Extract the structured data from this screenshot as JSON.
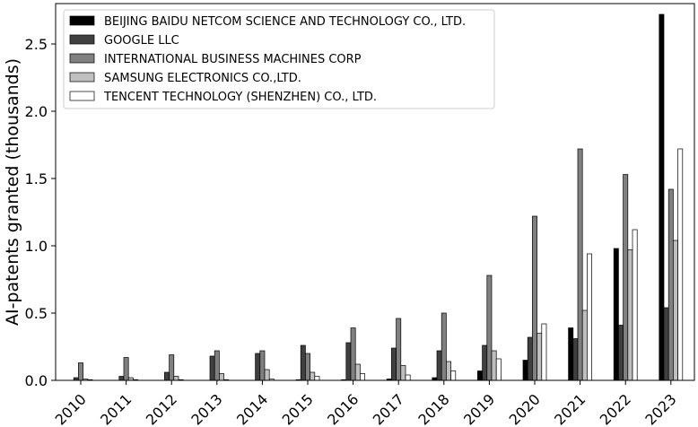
{
  "chart_data": {
    "type": "bar",
    "title": "",
    "xlabel": "",
    "ylabel": "AI-patents granted (thousands)",
    "ylim": [
      0,
      2.8
    ],
    "yticks": [
      "0.0",
      "0.5",
      "1.0",
      "1.5",
      "2.0",
      "2.5"
    ],
    "grid": false,
    "legend_position": "top-left",
    "categories": [
      "2010",
      "2011",
      "2012",
      "2013",
      "2014",
      "2015",
      "2016",
      "2017",
      "2018",
      "2019",
      "2020",
      "2021",
      "2022",
      "2023"
    ],
    "series": [
      {
        "name": "BEIJING BAIDU NETCOM SCIENCE AND TECHNOLOGY CO., LTD.",
        "color": "#000000",
        "values": [
          0.0,
          0.0,
          0.0,
          0.0,
          0.0,
          0.005,
          0.005,
          0.01,
          0.02,
          0.07,
          0.15,
          0.39,
          0.98,
          2.72
        ]
      },
      {
        "name": "GOOGLE LLC",
        "color": "#404040",
        "values": [
          0.02,
          0.03,
          0.06,
          0.18,
          0.2,
          0.26,
          0.28,
          0.24,
          0.22,
          0.26,
          0.32,
          0.31,
          0.41,
          0.54
        ]
      },
      {
        "name": "INTERNATIONAL BUSINESS MACHINES CORP",
        "color": "#808080",
        "values": [
          0.13,
          0.17,
          0.19,
          0.22,
          0.22,
          0.2,
          0.39,
          0.46,
          0.5,
          0.78,
          1.22,
          1.72,
          1.53,
          1.42
        ]
      },
      {
        "name": "SAMSUNG ELECTRONICS CO.,LTD.",
        "color": "#bfbfbf",
        "values": [
          0.01,
          0.02,
          0.03,
          0.05,
          0.08,
          0.06,
          0.12,
          0.11,
          0.14,
          0.22,
          0.35,
          0.52,
          0.97,
          1.04
        ]
      },
      {
        "name": "TENCENT TECHNOLOGY (SHENZHEN) CO., LTD.",
        "color": "#ffffff",
        "values": [
          0.005,
          0.005,
          0.005,
          0.005,
          0.01,
          0.03,
          0.05,
          0.04,
          0.07,
          0.16,
          0.42,
          0.94,
          1.12,
          1.72
        ]
      }
    ]
  }
}
